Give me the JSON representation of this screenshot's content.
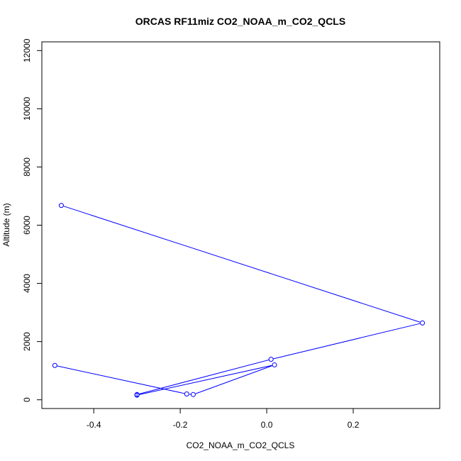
{
  "chart_data": {
    "type": "line",
    "title": "ORCAS RF11miz CO2_NOAA_m_CO2_QCLS",
    "xlabel": "CO2_NOAA_m_CO2_QCLS",
    "ylabel": "Altitude (m)",
    "xlim": [
      -0.52,
      0.4
    ],
    "ylim": [
      -300,
      12300
    ],
    "xticks": [
      -0.4,
      -0.2,
      0.0,
      0.2
    ],
    "xtick_labels": [
      "-0.4",
      "-0.2",
      "0.0",
      "0.2"
    ],
    "yticks": [
      0,
      2000,
      4000,
      6000,
      8000,
      10000,
      12000
    ],
    "ytick_labels": [
      "0",
      "2000",
      "4000",
      "6000",
      "8000",
      "10000",
      "12000"
    ],
    "grid": false,
    "marker": "open-circle",
    "color": "#0000ff",
    "series": [
      {
        "x": [
          -0.475,
          0.36,
          0.01,
          -0.3,
          -0.3,
          0.018,
          -0.17,
          -0.185,
          -0.49
        ],
        "y": [
          6680,
          2640,
          1390,
          180,
          160,
          1200,
          180,
          200,
          1180
        ]
      }
    ]
  }
}
